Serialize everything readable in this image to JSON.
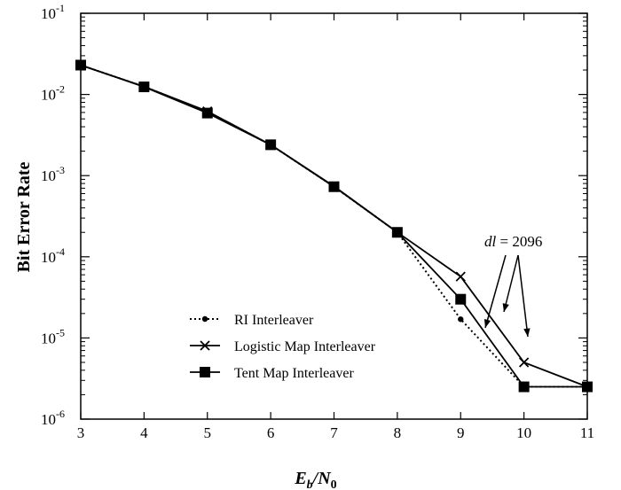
{
  "chart_data": {
    "type": "line",
    "xlabel": {
      "main": "E",
      "sub1": "b",
      "sep": "/N",
      "sub2": "0"
    },
    "ylabel": "Bit Error Rate",
    "xlim": [
      3,
      11
    ],
    "ylim": [
      1e-06,
      0.1
    ],
    "yscale": "log",
    "x_ticks": [
      "3",
      "4",
      "5",
      "6",
      "7",
      "8",
      "9",
      "10",
      "11"
    ],
    "y_ticks": [
      {
        "base": "10",
        "exp": "-6",
        "value": 1e-06
      },
      {
        "base": "10",
        "exp": "-5",
        "value": 1e-05
      },
      {
        "base": "10",
        "exp": "-4",
        "value": 0.0001
      },
      {
        "base": "10",
        "exp": "-3",
        "value": 0.001
      },
      {
        "base": "10",
        "exp": "-2",
        "value": 0.01
      },
      {
        "base": "10",
        "exp": "-1",
        "value": 0.1
      }
    ],
    "grid": false,
    "legend_position": "bottom-left",
    "series": [
      {
        "name": "RI Interleaver",
        "marker": "dot",
        "dash": "dotted",
        "x": [
          3,
          4,
          5,
          6,
          7,
          8,
          9,
          10,
          11
        ],
        "y": [
          0.023,
          0.0125,
          0.0061,
          0.0024,
          0.00073,
          0.0002,
          1.7e-05,
          2.5e-06,
          2.5e-06
        ]
      },
      {
        "name": "Logistic Map Interleaver",
        "marker": "x",
        "dash": "solid",
        "x": [
          3,
          4,
          5,
          6,
          7,
          8,
          9,
          10,
          11
        ],
        "y": [
          0.023,
          0.0125,
          0.0062,
          0.0024,
          0.00074,
          0.0002,
          5.7e-05,
          5e-06,
          2.5e-06
        ]
      },
      {
        "name": "Tent Map Interleaver",
        "marker": "square",
        "dash": "solid",
        "x": [
          3,
          4,
          5,
          6,
          7,
          8,
          9,
          10,
          11
        ],
        "y": [
          0.023,
          0.0124,
          0.0059,
          0.0024,
          0.00073,
          0.0002,
          3e-05,
          2.5e-06,
          2.5e-06
        ]
      }
    ],
    "annotation": {
      "italic": "dl",
      "rest": " = 2096"
    }
  }
}
